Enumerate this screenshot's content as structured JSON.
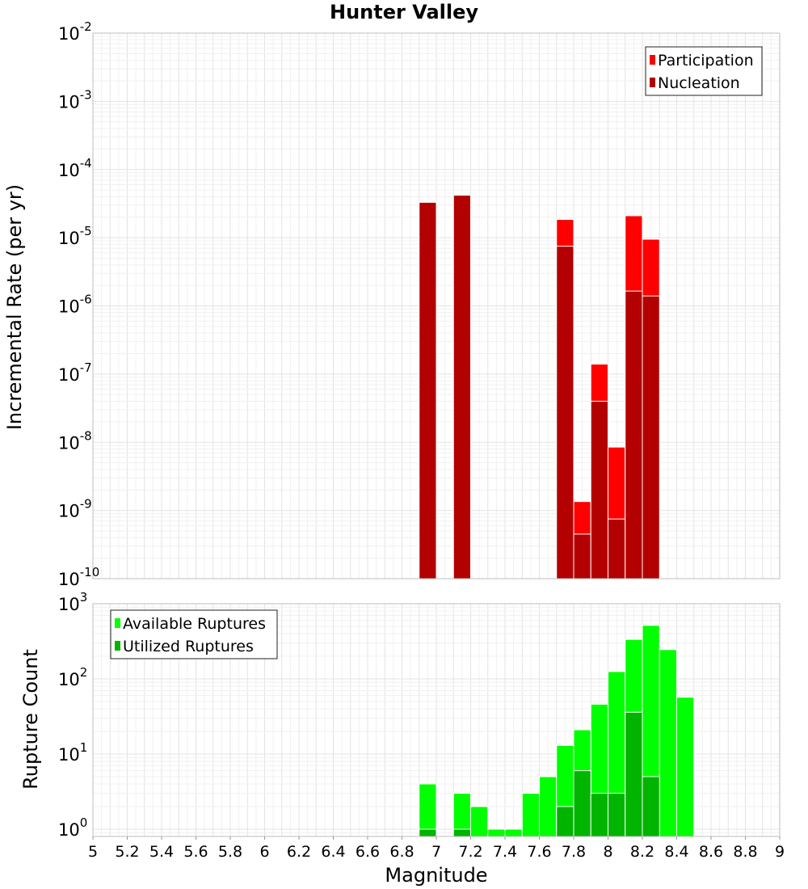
{
  "chart_data": [
    {
      "type": "bar",
      "title": "Hunter Valley",
      "xlabel": "",
      "ylabel": "Incremental Rate (per yr)",
      "yscale": "log",
      "ylim": [
        1e-10,
        0.01
      ],
      "xlim": [
        5,
        9
      ],
      "bar_width": 0.1,
      "grid": true,
      "legend_position": "top-right",
      "y_tick_exponents": [
        "-10",
        "-9",
        "-8",
        "-7",
        "-6",
        "-5",
        "-4",
        "-3",
        "-2"
      ],
      "series": [
        {
          "name": "Participation",
          "color": "#ff0000",
          "x": [
            6.95,
            7.15,
            7.75,
            7.85,
            7.95,
            8.05,
            8.15,
            8.25
          ],
          "values": [
            3.3e-05,
            4.2e-05,
            1.85e-05,
            1.35e-09,
            1.4e-07,
            8.5e-09,
            2.1e-05,
            9.5e-06
          ]
        },
        {
          "name": "Nucleation",
          "color": "#b30000",
          "x": [
            6.95,
            7.15,
            7.75,
            7.85,
            7.95,
            8.05,
            8.15,
            8.25
          ],
          "values": [
            3.3e-05,
            4.2e-05,
            7.5e-06,
            4.5e-10,
            4e-08,
            7.5e-10,
            1.65e-06,
            1.4e-06
          ]
        }
      ]
    },
    {
      "type": "bar",
      "title": "",
      "xlabel": "Magnitude",
      "ylabel": "Rupture Count",
      "yscale": "log",
      "ylim": [
        0.8,
        1000
      ],
      "xlim": [
        5,
        9
      ],
      "bar_width": 0.1,
      "grid": true,
      "legend_position": "top-left",
      "x_ticks": [
        "5",
        "5.2",
        "5.4",
        "5.6",
        "5.8",
        "6",
        "6.2",
        "6.4",
        "6.6",
        "6.8",
        "7",
        "7.2",
        "7.4",
        "7.6",
        "7.8",
        "8",
        "8.2",
        "8.4",
        "8.6",
        "8.8",
        "9"
      ],
      "y_tick_exponents": [
        "0",
        "1",
        "2",
        "3"
      ],
      "series": [
        {
          "name": "Available Ruptures",
          "color": "#00ff00",
          "x": [
            6.95,
            7.15,
            7.25,
            7.35,
            7.45,
            7.55,
            7.65,
            7.75,
            7.85,
            7.95,
            8.05,
            8.15,
            8.25,
            8.35,
            8.45
          ],
          "values": [
            4,
            3,
            2,
            1,
            1,
            3,
            5,
            13,
            21,
            46,
            125,
            335,
            515,
            245,
            57
          ]
        },
        {
          "name": "Utilized Ruptures",
          "color": "#00b400",
          "x": [
            6.95,
            7.15,
            7.75,
            7.85,
            7.95,
            8.05,
            8.15,
            8.25
          ],
          "values": [
            1,
            1,
            2,
            6,
            3,
            3,
            36,
            5
          ]
        }
      ]
    }
  ]
}
